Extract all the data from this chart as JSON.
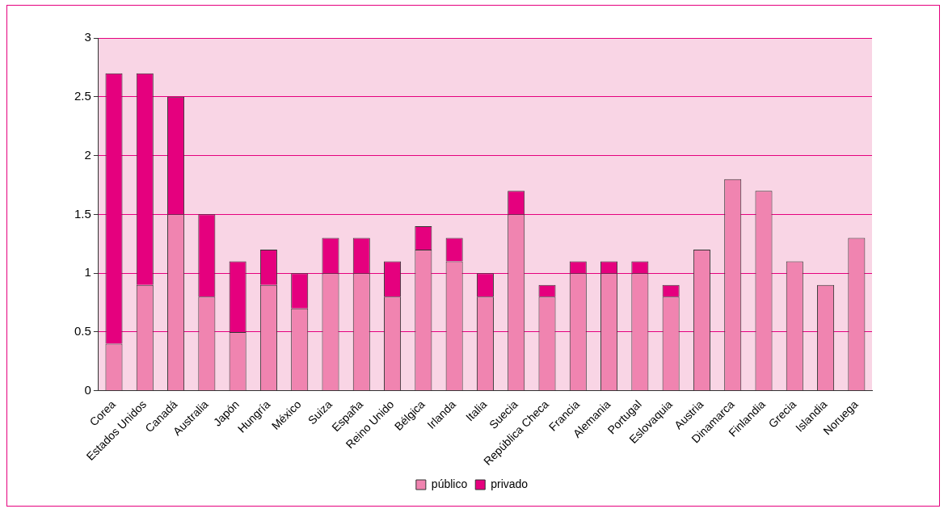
{
  "chart_data": {
    "type": "bar",
    "stacked": true,
    "categories": [
      "Corea",
      "Estados Unidos",
      "Canadá",
      "Australia",
      "Japón",
      "Hungría",
      "México",
      "Suiza",
      "España",
      "Reino Unido",
      "Bélgica",
      "Irlanda",
      "Italia",
      "Suecia",
      "República Checa",
      "Francia",
      "Alemania",
      "Portugal",
      "Eslovaquia",
      "Austria",
      "Dinamarca",
      "Finlandia",
      "Grecia",
      "Islandia",
      "Noruega"
    ],
    "series": [
      {
        "name": "público",
        "color": "#f084b0",
        "values": [
          0.4,
          0.9,
          1.5,
          0.8,
          0.5,
          0.9,
          0.7,
          1.0,
          1.0,
          0.8,
          1.2,
          1.1,
          0.8,
          1.5,
          0.8,
          1.0,
          1.0,
          1.0,
          0.8,
          1.2,
          1.8,
          1.7,
          1.1,
          0.9,
          1.3
        ]
      },
      {
        "name": "privado",
        "color": "#e5007e",
        "values": [
          2.3,
          1.8,
          1.0,
          0.7,
          0.6,
          0.3,
          0.3,
          0.3,
          0.3,
          0.3,
          0.2,
          0.2,
          0.2,
          0.2,
          0.1,
          0.1,
          0.1,
          0.1,
          0.1,
          0,
          0,
          0,
          0,
          0,
          0
        ]
      }
    ],
    "ylim": [
      0,
      3
    ],
    "yticks": [
      0,
      0.5,
      1,
      1.5,
      2,
      2.5,
      3
    ],
    "grid": "y",
    "legend": "bottom"
  }
}
